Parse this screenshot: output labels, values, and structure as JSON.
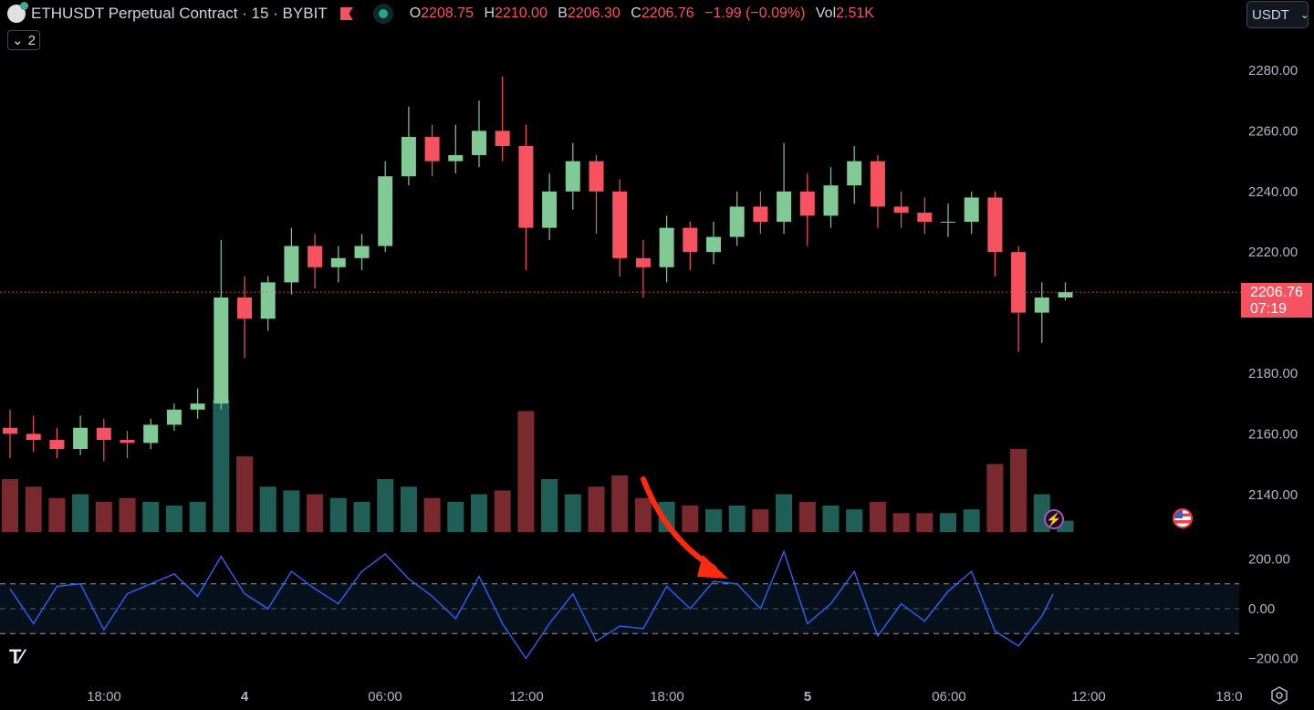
{
  "header": {
    "title": "ETHUSDT Perpetual Contract · 15 · BYBIT",
    "ohlc": {
      "o_label": "O",
      "o": "2208.75",
      "h_label": "H",
      "h": "2210.00",
      "b_label": "B",
      "b": "2206.30",
      "c_label": "C",
      "c": "2206.76",
      "change": "−1.99 (−0.09%)",
      "vol_label": "Vol",
      "vol": "2.51K"
    },
    "collapse_label": "2",
    "currency": "USDT"
  },
  "last_price": {
    "value": "2206.76",
    "countdown": "07:19"
  },
  "colors": {
    "up": "#81c995",
    "down": "#f7525f",
    "vol_up": "#1f5f57",
    "vol_down": "#7a2a2e",
    "cci": "#2962ff",
    "band_fill": "#06111b",
    "annotation_arrow": "#ff2a10"
  },
  "icons": {
    "symbol": "ethereum-icon",
    "flag": "flag-icon",
    "status": "market-open-dot-icon",
    "event1": "lightning-icon",
    "event2": "us-flag-icon",
    "logo": "tradingview-logo",
    "settings": "gear-icon"
  },
  "chart_data": [
    {
      "type": "candlestick",
      "note_interval": "15",
      "price_axis": {
        "ticks": [
          2280,
          2260,
          2240,
          2220,
          2180,
          2160,
          2140
        ],
        "tick_labels": [
          "2280.00",
          "2260.00",
          "2240.00",
          "2220.00",
          "2180.00",
          "2160.00",
          "2140.00"
        ]
      },
      "time_axis": {
        "tick_labels": [
          "18:00",
          "4",
          "06:00",
          "12:00",
          "18:00",
          "5",
          "06:00",
          "12:00",
          "18:0"
        ]
      },
      "ohlc_hourly": [
        [
          2162,
          2168,
          2152,
          2160
        ],
        [
          2160,
          2166,
          2154,
          2158
        ],
        [
          2158,
          2162,
          2152,
          2155
        ],
        [
          2155,
          2166,
          2153,
          2162
        ],
        [
          2162,
          2165,
          2151,
          2158
        ],
        [
          2158,
          2161,
          2152,
          2157
        ],
        [
          2157,
          2165,
          2155,
          2163
        ],
        [
          2163,
          2170,
          2161,
          2168
        ],
        [
          2168,
          2175,
          2165,
          2170
        ],
        [
          2170,
          2224,
          2168,
          2205
        ],
        [
          2205,
          2212,
          2185,
          2198
        ],
        [
          2198,
          2212,
          2194,
          2210
        ],
        [
          2210,
          2228,
          2206,
          2222
        ],
        [
          2222,
          2226,
          2208,
          2215
        ],
        [
          2215,
          2222,
          2210,
          2218
        ],
        [
          2218,
          2226,
          2214,
          2222
        ],
        [
          2222,
          2250,
          2220,
          2245
        ],
        [
          2245,
          2268,
          2242,
          2258
        ],
        [
          2258,
          2262,
          2245,
          2250
        ],
        [
          2250,
          2262,
          2246,
          2252
        ],
        [
          2252,
          2270,
          2248,
          2260
        ],
        [
          2260,
          2278,
          2250,
          2255
        ],
        [
          2255,
          2262,
          2214,
          2228
        ],
        [
          2228,
          2246,
          2224,
          2240
        ],
        [
          2240,
          2256,
          2234,
          2250
        ],
        [
          2250,
          2252,
          2226,
          2240
        ],
        [
          2240,
          2244,
          2212,
          2218
        ],
        [
          2218,
          2224,
          2205,
          2215
        ],
        [
          2215,
          2232,
          2210,
          2228
        ],
        [
          2228,
          2230,
          2214,
          2220
        ],
        [
          2220,
          2230,
          2216,
          2225
        ],
        [
          2225,
          2240,
          2222,
          2235
        ],
        [
          2235,
          2240,
          2226,
          2230
        ],
        [
          2230,
          2256,
          2226,
          2240
        ],
        [
          2240,
          2246,
          2222,
          2232
        ],
        [
          2232,
          2248,
          2228,
          2242
        ],
        [
          2242,
          2255,
          2236,
          2250
        ],
        [
          2250,
          2252,
          2228,
          2235
        ],
        [
          2235,
          2240,
          2228,
          2233
        ],
        [
          2233,
          2238,
          2226,
          2230
        ],
        [
          2230,
          2236,
          2225,
          2230
        ],
        [
          2230,
          2240,
          2226,
          2238
        ],
        [
          2238,
          2240,
          2212,
          2220
        ],
        [
          2220,
          2222,
          2187,
          2200
        ],
        [
          2200,
          2210,
          2190,
          2205
        ],
        [
          2205,
          2210,
          2204,
          2206.76
        ]
      ],
      "volume_hourly": [
        14,
        12,
        9,
        10,
        8,
        9,
        8,
        7,
        8,
        35,
        20,
        12,
        11,
        10,
        9,
        8,
        14,
        12,
        9,
        8,
        10,
        11,
        32,
        14,
        10,
        12,
        15,
        9,
        8,
        7,
        6,
        7,
        6,
        10,
        8,
        7,
        6,
        8,
        5,
        5,
        5,
        6,
        18,
        22,
        10,
        3
      ]
    },
    {
      "type": "line",
      "indicator": "oscillator",
      "axis": {
        "ticks": [
          200,
          0,
          -200
        ],
        "tick_labels": [
          "200.00",
          "0.00",
          "−200.00"
        ]
      },
      "bands": [
        100,
        0,
        -100
      ],
      "values_hourly": [
        80,
        -60,
        90,
        100,
        -85,
        60,
        100,
        140,
        50,
        210,
        60,
        0,
        150,
        80,
        20,
        150,
        220,
        120,
        50,
        -40,
        130,
        -60,
        -200,
        -60,
        60,
        -130,
        -70,
        -80,
        90,
        0,
        110,
        100,
        0,
        230,
        -60,
        20,
        150,
        -110,
        20,
        -50,
        70,
        150,
        -90,
        -150,
        -30,
        60
      ]
    }
  ]
}
